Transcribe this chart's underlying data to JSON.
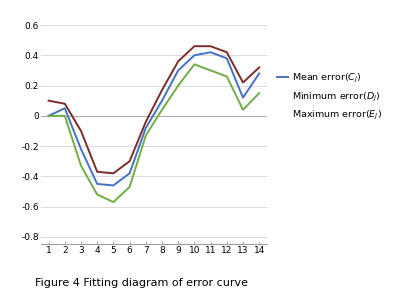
{
  "x": [
    1,
    2,
    3,
    4,
    5,
    6,
    7,
    8,
    9,
    10,
    11,
    12,
    13,
    14
  ],
  "mean_error": [
    0.0,
    0.05,
    -0.22,
    -0.45,
    -0.46,
    -0.38,
    -0.08,
    0.1,
    0.3,
    0.4,
    0.42,
    0.38,
    0.12,
    0.28
  ],
  "min_error": [
    0.0,
    0.0,
    -0.33,
    -0.52,
    -0.57,
    -0.47,
    -0.13,
    0.04,
    0.2,
    0.34,
    0.3,
    0.26,
    0.04,
    0.15
  ],
  "max_error": [
    0.1,
    0.08,
    -0.1,
    -0.37,
    -0.38,
    -0.3,
    -0.04,
    0.17,
    0.36,
    0.46,
    0.46,
    0.42,
    0.22,
    0.32
  ],
  "mean_color": "#4472C4",
  "min_color": "#70AD47",
  "max_color": "#7B2C2C",
  "xlim": [
    0.5,
    14.5
  ],
  "ylim": [
    -0.85,
    0.65
  ],
  "yticks": [
    -0.8,
    -0.6,
    -0.4,
    -0.2,
    0.0,
    0.2,
    0.4,
    0.6
  ],
  "xticks": [
    1,
    2,
    3,
    4,
    5,
    6,
    7,
    8,
    9,
    10,
    11,
    12,
    13,
    14
  ],
  "legend_mean": "Mean error($C_j$)",
  "legend_min": "Minimum error($D_j$)",
  "legend_max": "Maximum error($E_j$)",
  "caption": "Figure 4 Fitting diagram of error curve",
  "background_color": "#FFFFFF",
  "line_width": 1.4
}
